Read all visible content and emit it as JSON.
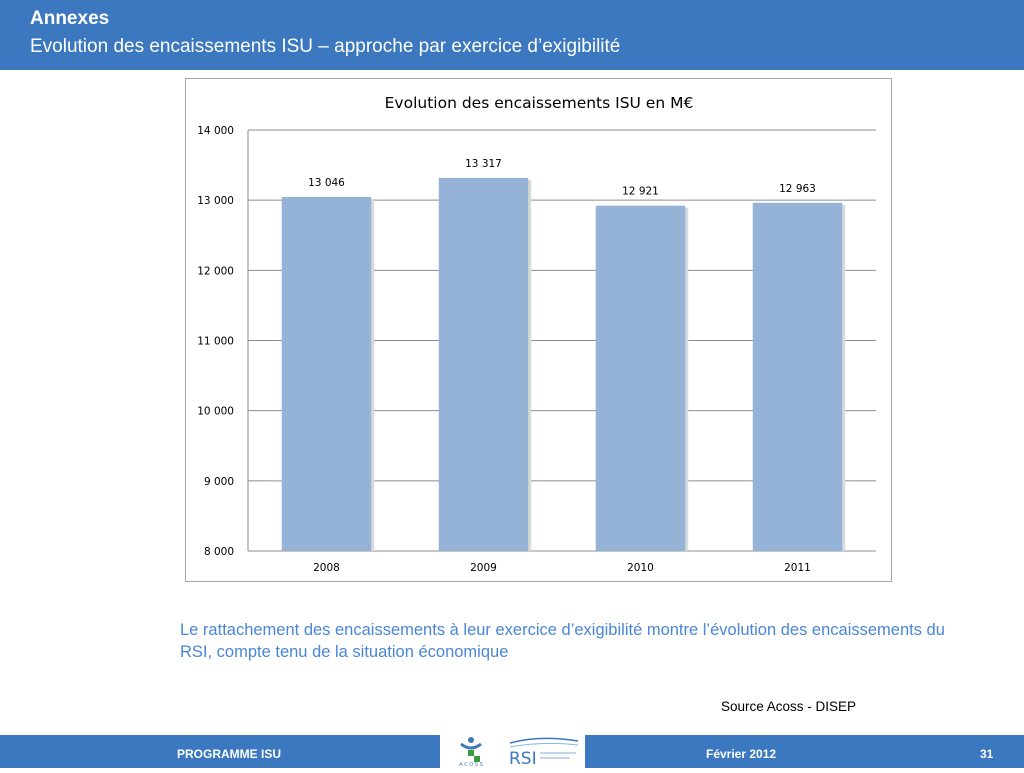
{
  "header": {
    "title": "Annexes",
    "subtitle": "Evolution des encaissements ISU – approche par exercice d’exigibilité"
  },
  "chart_data": {
    "type": "bar",
    "title": "Evolution des encaissements ISU en M€",
    "categories": [
      "2008",
      "2009",
      "2010",
      "2011"
    ],
    "values": [
      13046,
      13317,
      12921,
      12963
    ],
    "value_labels": [
      "13 046",
      "13 317",
      "12 921",
      "12 963"
    ],
    "ylim": [
      8000,
      14000
    ],
    "yticks": [
      8000,
      9000,
      10000,
      11000,
      12000,
      13000,
      14000
    ],
    "ytick_labels": [
      "8 000",
      "9 000",
      "10 000",
      "11 000",
      "12 000",
      "13 000",
      "14 000"
    ],
    "grid": true,
    "bar_color": "#95b3d7",
    "xlabel": "",
    "ylabel": ""
  },
  "note": "Le rattachement des encaissements à leur exercice d’exigibilité montre l’évolution des encaissements du RSI, compte tenu de la situation économique",
  "source": "Source Acoss - DISEP",
  "footer": {
    "left": "PROGRAMME ISU",
    "date": "Février 2012",
    "page": "31",
    "logo1_text": "A C O S S",
    "logo2_text": "RSI"
  },
  "colors": {
    "header_bg": "#3b78bf",
    "note_text": "#4a86d8"
  }
}
